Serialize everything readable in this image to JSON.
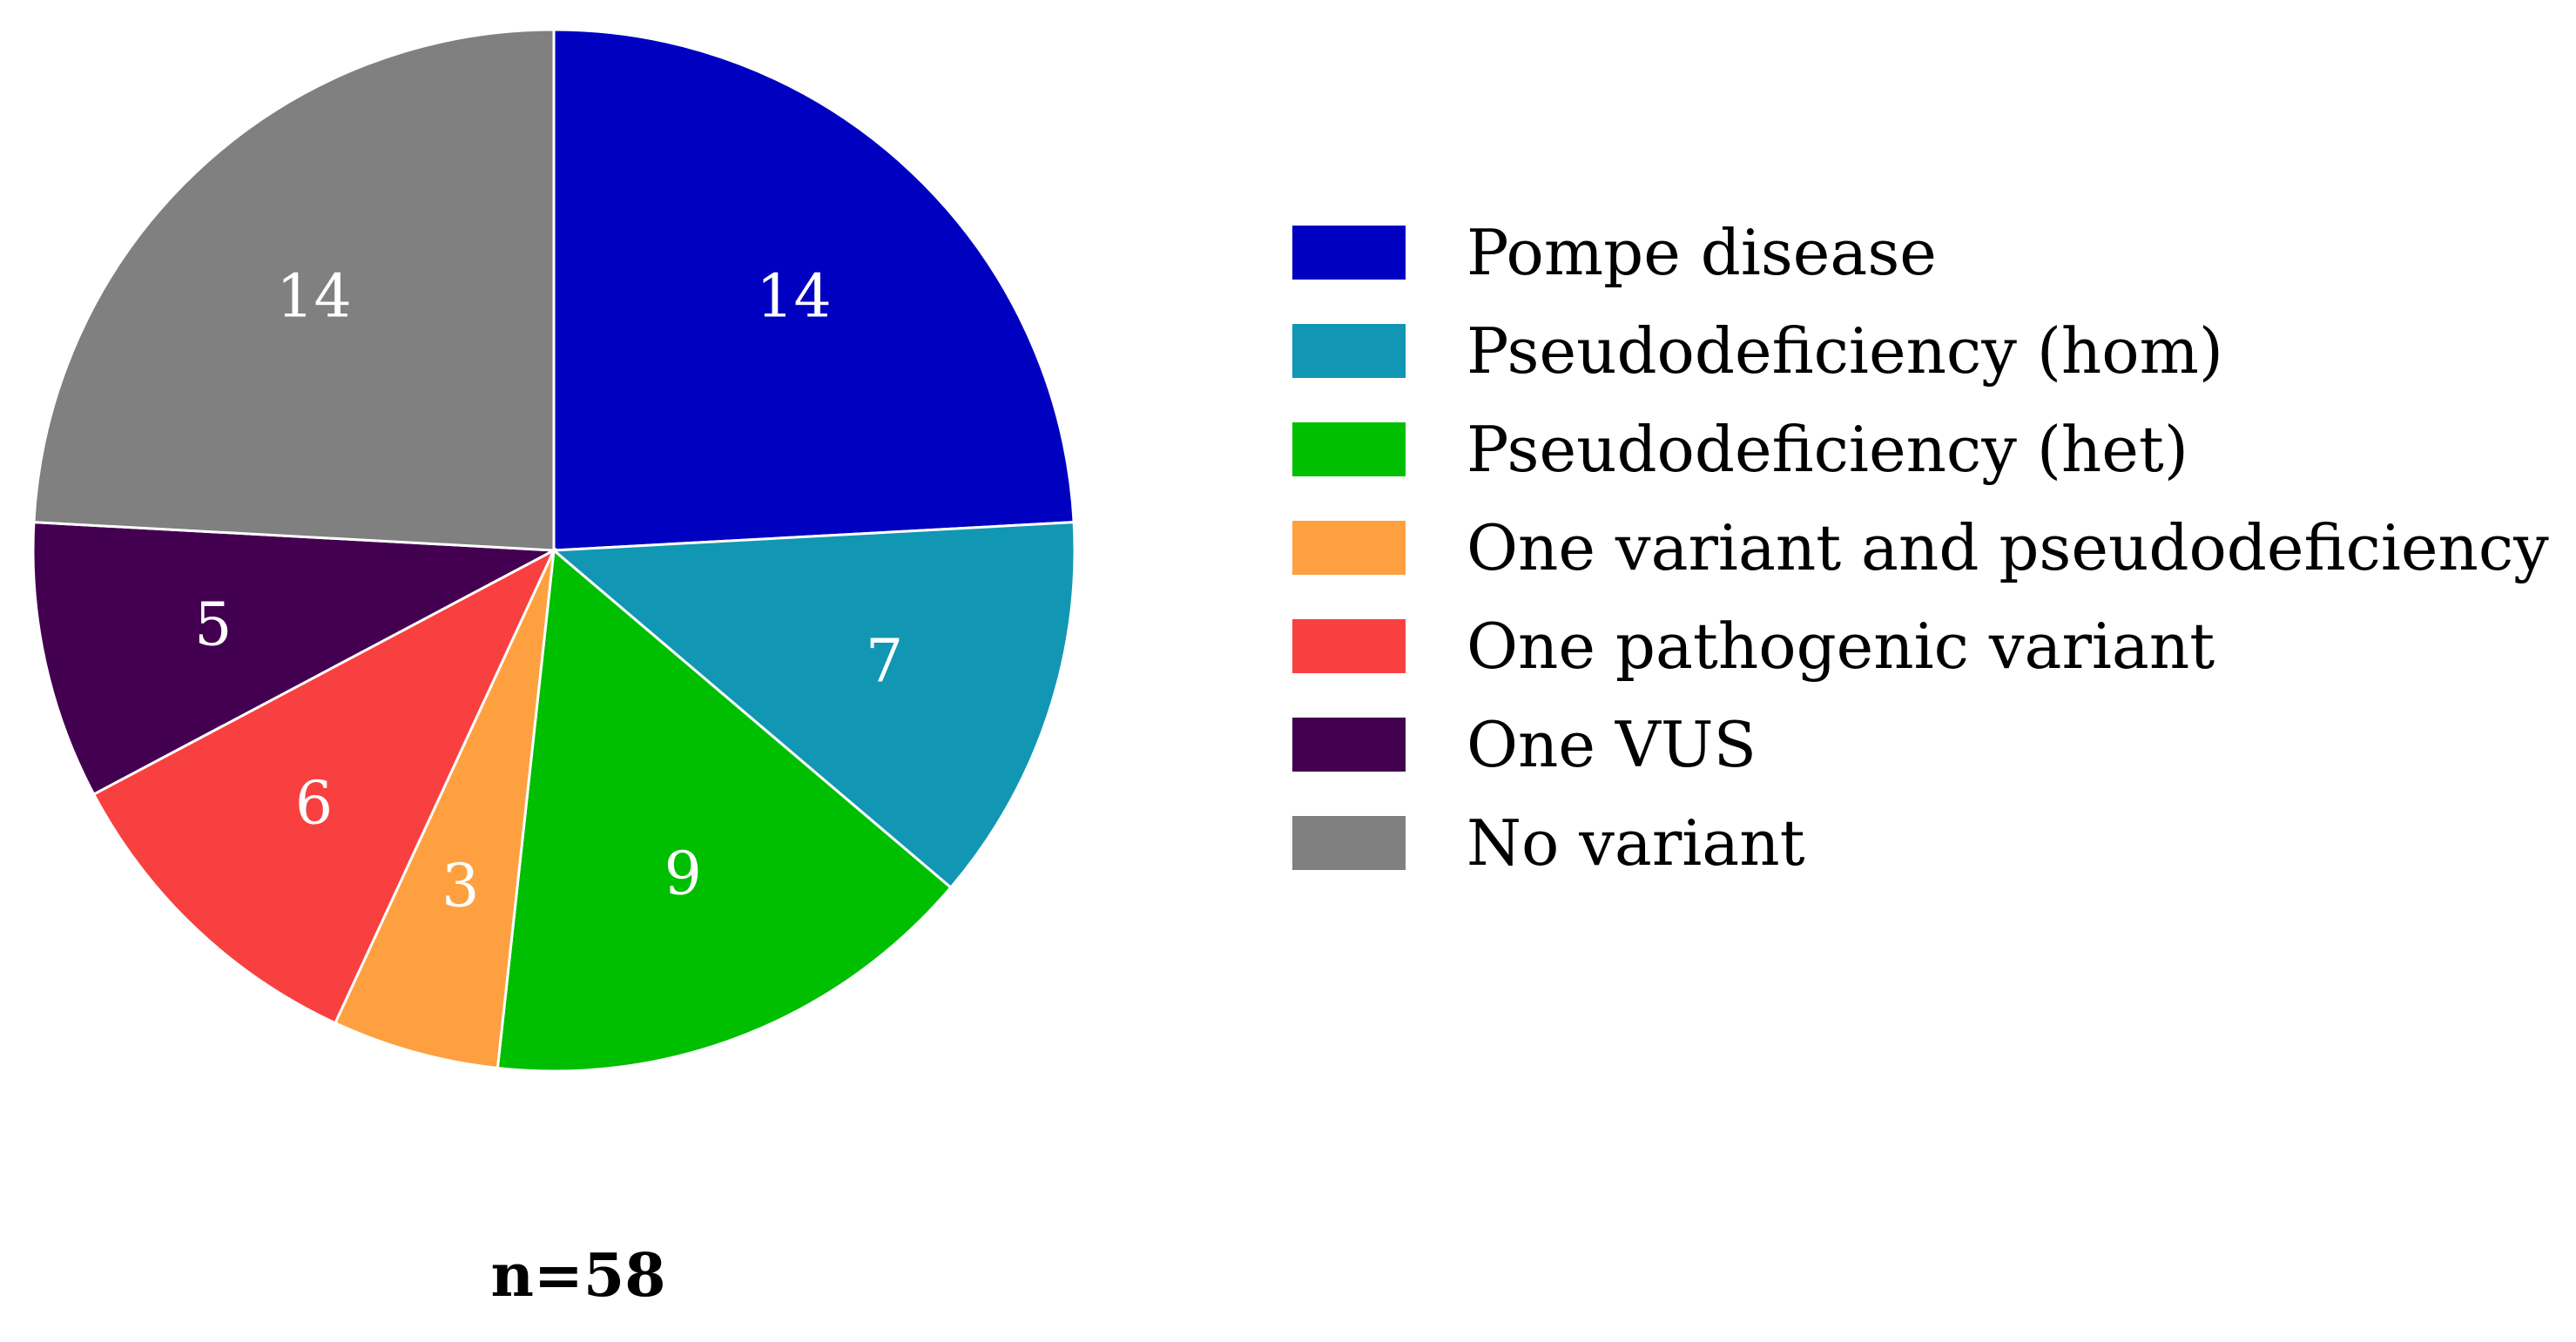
{
  "chart_data": {
    "type": "pie",
    "title": "",
    "start": "12 o'clock",
    "direction": "clockwise",
    "labels": [
      "Pompe disease",
      "Pseudodeficiency (hom)",
      "Pseudodeficiency (het)",
      "One variant and pseudodeficiency",
      "One pathogenic variant",
      "One VUS",
      "No variant"
    ],
    "values": [
      14,
      7,
      9,
      3,
      6,
      5,
      14
    ],
    "value_labels": [
      "14",
      "7",
      "9",
      "3",
      "6",
      "5",
      "14"
    ],
    "colors": [
      "#0000C0",
      "#1197B4",
      "#00BF00",
      "#FFA040",
      "#F94040",
      "#430050",
      "#808080"
    ],
    "slice_label_color": "#ffffff",
    "slice_border_color": "#ffffff",
    "legend_position": "right",
    "total_label": "n=58"
  }
}
